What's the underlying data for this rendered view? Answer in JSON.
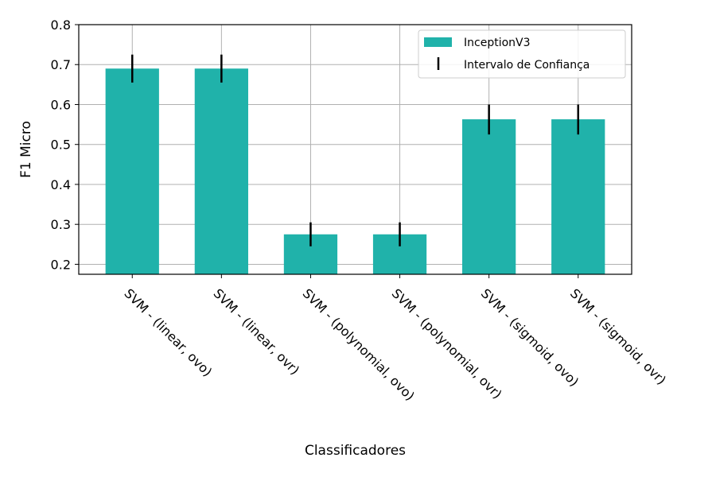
{
  "chart_data": {
    "type": "bar",
    "title": "",
    "xlabel": "Classificadores",
    "ylabel": "F1 Micro",
    "ylim": [
      0.175,
      0.8
    ],
    "yticks": [
      "0.2",
      "0.3",
      "0.4",
      "0.5",
      "0.6",
      "0.7",
      "0.8"
    ],
    "categories": [
      "SVM - (linear, ovo)",
      "SVM - (linear, ovr)",
      "SVM - (polynomial, ovo)",
      "SVM - (polynomial, ovr)",
      "SVM - (sigmoid, ovo)",
      "SVM - (sigmoid, ovr)"
    ],
    "series": [
      {
        "name": "InceptionV3",
        "color": "#20b2aa",
        "values": [
          0.69,
          0.69,
          0.275,
          0.275,
          0.563,
          0.563
        ],
        "error_low": [
          0.655,
          0.655,
          0.245,
          0.245,
          0.525,
          0.525
        ],
        "error_high": [
          0.725,
          0.725,
          0.305,
          0.305,
          0.6,
          0.6
        ]
      }
    ],
    "legend": {
      "position": "top-right",
      "entries": [
        "InceptionV3",
        "Intervalo de Confiança"
      ]
    },
    "grid": true
  }
}
